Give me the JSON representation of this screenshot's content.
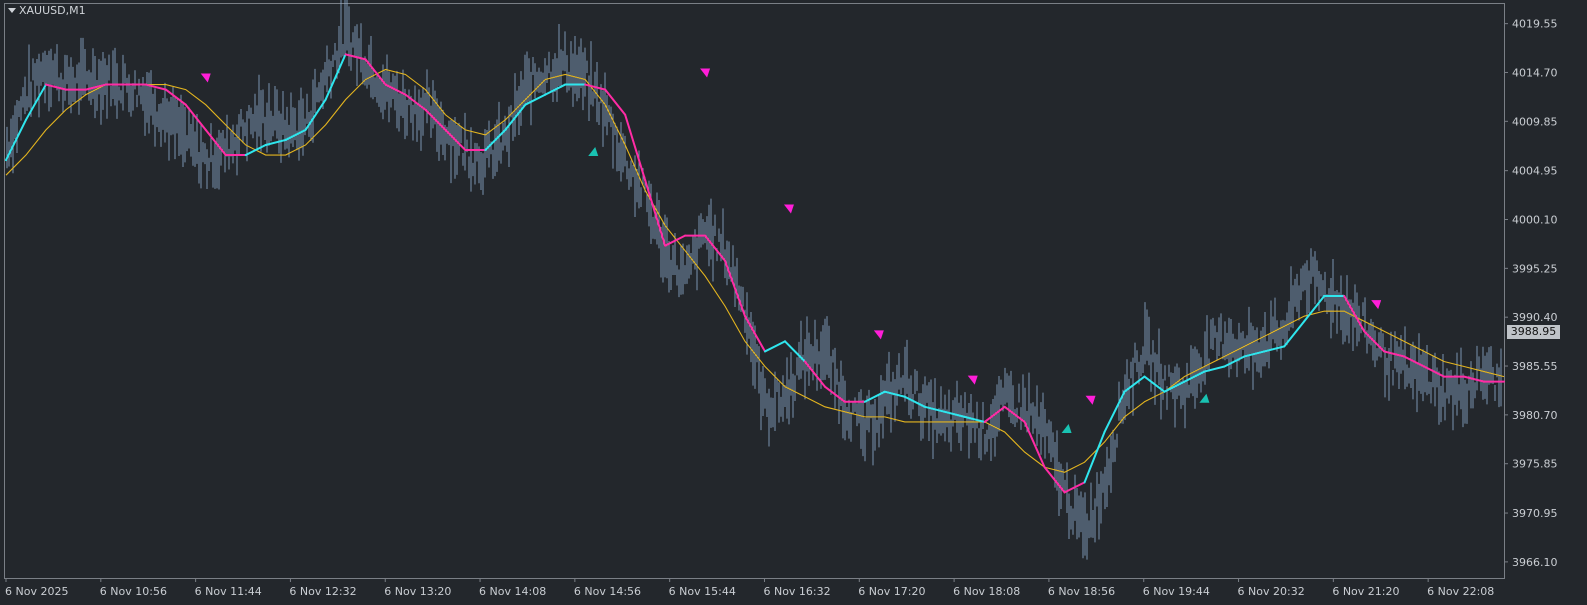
{
  "header": {
    "symbol_timeframe": "XAUUSD,M1"
  },
  "current_price": {
    "label": "3988.95",
    "value": 3988.95
  },
  "colors": {
    "background": "#23272c",
    "bars": "#8aa6c7",
    "fast_line_up": "#2fe6ee",
    "fast_line_down": "#ff2ba5",
    "slow_line": "#e4b51f",
    "arrow_up": "#19c2b2",
    "arrow_down": "#ff1ed8",
    "axis_text": "#c9cdd2"
  },
  "chart_data": {
    "type": "line",
    "title": "",
    "xlabel": "",
    "ylabel": "",
    "ylim": [
      3964.5,
      4021.5
    ],
    "y_ticks": [
      "4019.55",
      "4014.70",
      "4009.85",
      "4004.95",
      "4000.10",
      "3995.25",
      "3990.40",
      "3985.55",
      "3980.70",
      "3975.85",
      "3970.95",
      "3966.10"
    ],
    "x_tick_labels": [
      "6 Nov 2025",
      "6 Nov 10:56",
      "6 Nov 11:44",
      "6 Nov 12:32",
      "6 Nov 13:20",
      "6 Nov 14:08",
      "6 Nov 14:56",
      "6 Nov 15:44",
      "6 Nov 16:32",
      "6 Nov 17:20",
      "6 Nov 18:08",
      "6 Nov 18:56",
      "6 Nov 19:44",
      "6 Nov 20:32",
      "6 Nov 21:20",
      "6 Nov 22:08"
    ],
    "x_range": [
      0,
      750
    ],
    "grid": false,
    "series": [
      {
        "role": "price-bars",
        "x": [
          0,
          10,
          20,
          30,
          40,
          50,
          60,
          70,
          80,
          90,
          100,
          110,
          120,
          130,
          140,
          150,
          160,
          170,
          180,
          190,
          200,
          210,
          220,
          230,
          240,
          250,
          260,
          270,
          280,
          290,
          300,
          310,
          320,
          330,
          340,
          350,
          360,
          370,
          380,
          390,
          400,
          410,
          420,
          430,
          440,
          450,
          460,
          470,
          480,
          490,
          500,
          510,
          520,
          530,
          540,
          550,
          560,
          570,
          580,
          590,
          600,
          610,
          620,
          630,
          640,
          650,
          660,
          670,
          680,
          690,
          700,
          710,
          720,
          730,
          740,
          750
        ],
        "values": [
          4007.0,
          4012.5,
          4015.5,
          4013.5,
          4014.0,
          4014.0,
          4013.5,
          4012.5,
          4010.5,
          4008.0,
          4006.0,
          4007.0,
          4009.5,
          4010.5,
          4009.0,
          4009.5,
          4014.5,
          4018.5,
          4016.0,
          4013.0,
          4011.5,
          4011.0,
          4009.0,
          4007.0,
          4006.0,
          4008.0,
          4013.0,
          4015.0,
          4015.5,
          4014.0,
          4011.0,
          4006.0,
          4002.5,
          3997.0,
          3994.0,
          3999.0,
          3997.0,
          3991.5,
          3981.5,
          3982.5,
          3986.5,
          3987.0,
          3982.0,
          3979.0,
          3982.0,
          3984.5,
          3981.5,
          3979.5,
          3980.5,
          3979.0,
          3982.0,
          3981.5,
          3979.0,
          3973.0,
          3969.0,
          3974.0,
          3983.0,
          3987.5,
          3984.0,
          3983.0,
          3986.5,
          3988.5,
          3987.0,
          3988.0,
          3989.0,
          3994.5,
          3993.0,
          3991.5,
          3989.5,
          3986.5,
          3985.0,
          3984.5,
          3983.0,
          3983.0,
          3985.0,
          3983.5
        ]
      },
      {
        "role": "fast-trend-line",
        "x": [
          0,
          10,
          20,
          30,
          40,
          50,
          60,
          70,
          80,
          90,
          100,
          110,
          120,
          130,
          140,
          150,
          160,
          170,
          180,
          190,
          200,
          210,
          220,
          230,
          240,
          250,
          260,
          270,
          280,
          290,
          300,
          310,
          320,
          330,
          340,
          350,
          360,
          370,
          380,
          390,
          400,
          410,
          420,
          430,
          440,
          450,
          460,
          470,
          480,
          490,
          500,
          510,
          520,
          530,
          540,
          550,
          560,
          570,
          580,
          590,
          600,
          610,
          620,
          630,
          640,
          650,
          660,
          670,
          680,
          690,
          700,
          710,
          720,
          730,
          740,
          750
        ],
        "values": [
          4006.0,
          4010.0,
          4013.5,
          4013.0,
          4013.0,
          4013.5,
          4013.5,
          4013.5,
          4013.0,
          4011.5,
          4009.0,
          4006.5,
          4006.5,
          4007.5,
          4008.0,
          4009.0,
          4012.0,
          4016.5,
          4016.0,
          4013.5,
          4012.5,
          4011.0,
          4009.0,
          4007.0,
          4007.0,
          4009.0,
          4011.5,
          4012.5,
          4013.5,
          4013.5,
          4013.0,
          4010.5,
          4004.0,
          3997.5,
          3998.5,
          3998.5,
          3996.0,
          3990.5,
          3987.0,
          3988.0,
          3986.0,
          3983.5,
          3982.0,
          3982.0,
          3983.0,
          3982.5,
          3981.5,
          3981.0,
          3980.5,
          3980.0,
          3981.5,
          3980.0,
          3975.5,
          3973.0,
          3974.0,
          3979.0,
          3983.0,
          3984.5,
          3983.0,
          3984.0,
          3985.0,
          3985.5,
          3986.5,
          3987.0,
          3987.5,
          3990.0,
          3992.5,
          3992.5,
          3989.0,
          3987.0,
          3986.5,
          3985.5,
          3984.5,
          3984.5,
          3984.0,
          3984.0
        ],
        "colors": [
          "up",
          "up",
          "up",
          "down",
          "down",
          "down",
          "down",
          "down",
          "down",
          "down",
          "down",
          "down",
          "down",
          "up",
          "up",
          "up",
          "up",
          "up",
          "down",
          "down",
          "down",
          "down",
          "down",
          "down",
          "down",
          "up",
          "up",
          "up",
          "up",
          "up",
          "down",
          "down",
          "down",
          "down",
          "down",
          "down",
          "down",
          "down",
          "down",
          "up",
          "up",
          "down",
          "down",
          "down",
          "up",
          "up",
          "up",
          "up",
          "up",
          "up",
          "down",
          "down",
          "down",
          "down",
          "down",
          "up",
          "up",
          "up",
          "up",
          "up",
          "up",
          "up",
          "up",
          "up",
          "up",
          "up",
          "up",
          "up",
          "down",
          "down",
          "down",
          "down",
          "down",
          "down",
          "down",
          "down"
        ]
      },
      {
        "role": "slow-trend-line",
        "x": [
          0,
          10,
          20,
          30,
          40,
          50,
          60,
          70,
          80,
          90,
          100,
          110,
          120,
          130,
          140,
          150,
          160,
          170,
          180,
          190,
          200,
          210,
          220,
          230,
          240,
          250,
          260,
          270,
          280,
          290,
          300,
          310,
          320,
          330,
          340,
          350,
          360,
          370,
          380,
          390,
          400,
          410,
          420,
          430,
          440,
          450,
          460,
          470,
          480,
          490,
          500,
          510,
          520,
          530,
          540,
          550,
          560,
          570,
          580,
          590,
          600,
          610,
          620,
          630,
          640,
          650,
          660,
          670,
          680,
          690,
          700,
          710,
          720,
          730,
          740,
          750
        ],
        "values": [
          4004.5,
          4006.5,
          4009.0,
          4011.0,
          4012.5,
          4013.5,
          4013.5,
          4013.5,
          4013.5,
          4013.0,
          4011.5,
          4009.5,
          4007.5,
          4006.5,
          4006.5,
          4007.5,
          4009.5,
          4012.0,
          4014.0,
          4015.0,
          4014.5,
          4013.0,
          4010.5,
          4009.0,
          4008.5,
          4010.0,
          4012.0,
          4014.0,
          4014.5,
          4014.0,
          4011.5,
          4007.5,
          4003.0,
          3999.5,
          3997.0,
          3994.5,
          3991.5,
          3988.0,
          3985.5,
          3983.5,
          3982.5,
          3981.5,
          3981.0,
          3980.5,
          3980.5,
          3980.0,
          3980.0,
          3980.0,
          3980.0,
          3980.0,
          3979.0,
          3977.0,
          3975.5,
          3975.0,
          3976.0,
          3978.0,
          3980.5,
          3982.0,
          3983.0,
          3984.5,
          3985.5,
          3986.5,
          3987.5,
          3988.5,
          3989.5,
          3990.5,
          3991.0,
          3991.0,
          3990.0,
          3989.0,
          3988.0,
          3987.0,
          3986.0,
          3985.5,
          3985.0,
          3984.5
        ]
      },
      {
        "role": "signal-arrows",
        "points": [
          {
            "x": 100,
            "y": 4014.0,
            "dir": "down"
          },
          {
            "x": 294,
            "y": 4007.0,
            "dir": "up"
          },
          {
            "x": 350,
            "y": 4014.5,
            "dir": "down"
          },
          {
            "x": 392,
            "y": 4001.0,
            "dir": "down"
          },
          {
            "x": 437,
            "y": 3988.5,
            "dir": "down"
          },
          {
            "x": 484,
            "y": 3984.0,
            "dir": "down"
          },
          {
            "x": 531,
            "y": 3979.5,
            "dir": "up"
          },
          {
            "x": 543,
            "y": 3982.0,
            "dir": "down"
          },
          {
            "x": 600,
            "y": 3982.5,
            "dir": "up"
          },
          {
            "x": 686,
            "y": 3991.5,
            "dir": "down"
          }
        ]
      }
    ]
  }
}
